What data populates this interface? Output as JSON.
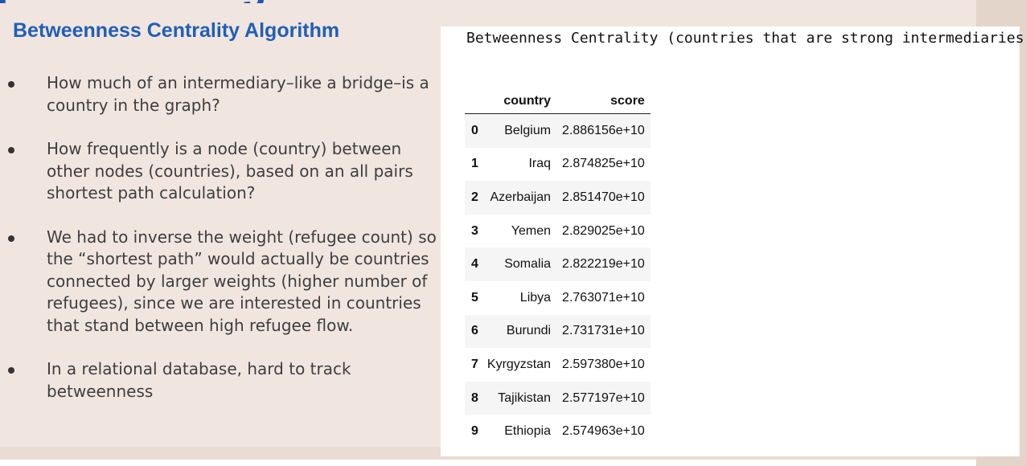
{
  "slide": {
    "subtitle": "Betweenness Centrality Algorithm",
    "bullets": [
      "How much of an intermediary–like a bridge–is a country in the graph?",
      "How frequently is a node (country) between other nodes (countries), based on an all pairs shortest path calculation?",
      "We had to inverse the weight (refugee count) so the “shortest path” would actually be countries connected by larger weights (higher number of refugees), since we are interested in countries that stand between high refugee flow.",
      "In a relational database, hard to track betweenness"
    ]
  },
  "output": {
    "title": "Betweenness Centrality (countries that are strong intermediaries):",
    "columns": [
      "country",
      "score"
    ],
    "rows": [
      {
        "index": "0",
        "country": "Belgium",
        "score": "2.886156e+10"
      },
      {
        "index": "1",
        "country": "Iraq",
        "score": "2.874825e+10"
      },
      {
        "index": "2",
        "country": "Azerbaijan",
        "score": "2.851470e+10"
      },
      {
        "index": "3",
        "country": "Yemen",
        "score": "2.829025e+10"
      },
      {
        "index": "4",
        "country": "Somalia",
        "score": "2.822219e+10"
      },
      {
        "index": "5",
        "country": "Libya",
        "score": "2.763071e+10"
      },
      {
        "index": "6",
        "country": "Burundi",
        "score": "2.731731e+10"
      },
      {
        "index": "7",
        "country": "Kyrgyzstan",
        "score": "2.597380e+10"
      },
      {
        "index": "8",
        "country": "Tajikistan",
        "score": "2.577197e+10"
      },
      {
        "index": "9",
        "country": "Ethiopia",
        "score": "2.574963e+10"
      }
    ]
  },
  "colors": {
    "slide_background": "#f1e5df",
    "heading_blue": "#1f5fb8",
    "body_text": "#3e3e3e"
  }
}
